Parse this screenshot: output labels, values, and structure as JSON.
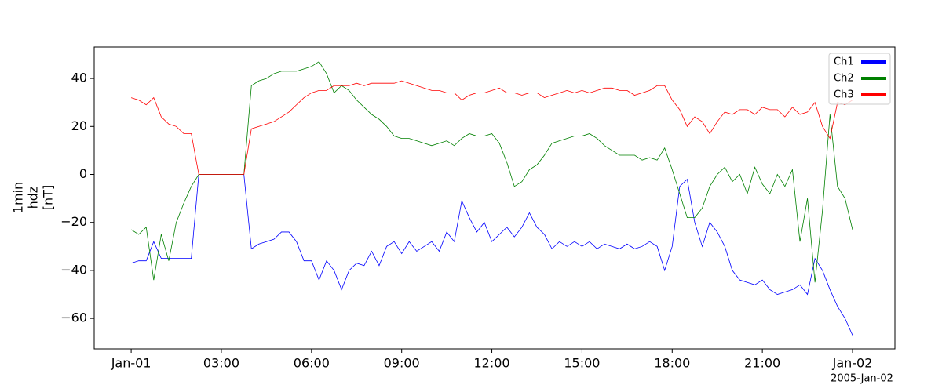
{
  "chart_data": {
    "type": "line",
    "ylabel_lines": [
      "1min",
      "hdz",
      "[nT]"
    ],
    "x_offset_label": "2005-Jan-02",
    "x": [
      0,
      0.25,
      0.5,
      0.75,
      1,
      1.25,
      1.5,
      1.75,
      2,
      2.25,
      2.5,
      2.75,
      3,
      3.25,
      3.5,
      3.75,
      4,
      4.25,
      4.5,
      4.75,
      5,
      5.25,
      5.5,
      5.75,
      6,
      6.25,
      6.5,
      6.75,
      7,
      7.25,
      7.5,
      7.75,
      8,
      8.25,
      8.5,
      8.75,
      9,
      9.25,
      9.5,
      9.75,
      10,
      10.25,
      10.5,
      10.75,
      11,
      11.25,
      11.5,
      11.75,
      12,
      12.25,
      12.5,
      12.75,
      13,
      13.25,
      13.5,
      13.75,
      14,
      14.25,
      14.5,
      14.75,
      15,
      15.25,
      15.5,
      15.75,
      16,
      16.25,
      16.5,
      16.75,
      17,
      17.25,
      17.5,
      17.75,
      18,
      18.25,
      18.5,
      18.75,
      19,
      19.25,
      19.5,
      19.75,
      20,
      20.25,
      20.5,
      20.75,
      21,
      21.25,
      21.5,
      21.75,
      22,
      22.25,
      22.5,
      22.75,
      23,
      23.25,
      23.5,
      23.75,
      24
    ],
    "series": [
      {
        "name": "Ch1",
        "color": "#0000ff",
        "values": [
          -37,
          -36,
          -36,
          -28,
          -35,
          -35,
          -35,
          -35,
          -35,
          0,
          0,
          0,
          0,
          0,
          0,
          0,
          -31,
          -29,
          -28,
          -27,
          -24,
          -24,
          -28,
          -36,
          -36,
          -44,
          -36,
          -40,
          -48,
          -40,
          -37,
          -38,
          -32,
          -38,
          -30,
          -28,
          -33,
          -28,
          -32,
          -30,
          -28,
          -32,
          -24,
          -28,
          -11,
          -18,
          -24,
          -20,
          -28,
          -25,
          -22,
          -26,
          -22,
          -16,
          -22,
          -25,
          -31,
          -28,
          -30,
          -28,
          -30,
          -28,
          -31,
          -29,
          -30,
          -31,
          -29,
          -31,
          -30,
          -28,
          -30,
          -40,
          -30,
          -5,
          -2,
          -20,
          -30,
          -20,
          -24,
          -30,
          -40,
          -44,
          -45,
          -46,
          -44,
          -48,
          -50,
          -49,
          -48,
          -46,
          -50,
          -35,
          -40,
          -48,
          -55,
          -60,
          -67
        ]
      },
      {
        "name": "Ch2",
        "color": "#008000",
        "values": [
          -23,
          -25,
          -22,
          -44,
          -25,
          -36,
          -20,
          -12,
          -5,
          0,
          0,
          0,
          0,
          0,
          0,
          0,
          37,
          39,
          40,
          42,
          43,
          43,
          43,
          44,
          45,
          47,
          42,
          34,
          37,
          35,
          31,
          28,
          25,
          23,
          20,
          16,
          15,
          15,
          14,
          13,
          12,
          13,
          14,
          12,
          15,
          17,
          16,
          16,
          17,
          13,
          5,
          -5,
          -3,
          2,
          4,
          8,
          13,
          14,
          15,
          16,
          16,
          17,
          15,
          12,
          10,
          8,
          8,
          8,
          6,
          7,
          6,
          11,
          2,
          -8,
          -18,
          -18,
          -14,
          -5,
          0,
          3,
          -3,
          0,
          -8,
          3,
          -4,
          -8,
          0,
          -5,
          2,
          -28,
          -10,
          -45,
          -15,
          25,
          -5,
          -10,
          -23
        ]
      },
      {
        "name": "Ch3",
        "color": "#ff0000",
        "values": [
          32,
          31,
          29,
          32,
          24,
          21,
          20,
          17,
          17,
          0,
          0,
          0,
          0,
          0,
          0,
          0,
          19,
          20,
          21,
          22,
          24,
          26,
          29,
          32,
          34,
          35,
          35,
          37,
          37,
          37,
          38,
          37,
          38,
          38,
          38,
          38,
          39,
          38,
          37,
          36,
          35,
          35,
          34,
          34,
          31,
          33,
          34,
          34,
          35,
          36,
          34,
          34,
          33,
          34,
          34,
          32,
          33,
          34,
          35,
          34,
          35,
          34,
          35,
          36,
          36,
          35,
          35,
          33,
          34,
          35,
          37,
          37,
          31,
          27,
          20,
          24,
          22,
          17,
          22,
          26,
          25,
          27,
          27,
          25,
          28,
          27,
          27,
          24,
          28,
          25,
          26,
          30,
          20,
          15,
          30,
          29,
          31
        ]
      }
    ],
    "xlim": [
      -1.23,
      25.41
    ],
    "xticks": [
      {
        "value": 0,
        "label": "Jan-01"
      },
      {
        "value": 3,
        "label": "03:00"
      },
      {
        "value": 6,
        "label": "06:00"
      },
      {
        "value": 9,
        "label": "09:00"
      },
      {
        "value": 12,
        "label": "12:00"
      },
      {
        "value": 15,
        "label": "15:00"
      },
      {
        "value": 18,
        "label": "18:00"
      },
      {
        "value": 21,
        "label": "21:00"
      },
      {
        "value": 24,
        "label": "Jan-02"
      }
    ],
    "ylim": [
      -72.7,
      53.1
    ],
    "yticks": [
      {
        "value": -60,
        "label": "−60"
      },
      {
        "value": -40,
        "label": "−40"
      },
      {
        "value": -20,
        "label": "−20"
      },
      0,
      20,
      40
    ],
    "legend": "upper right",
    "grid": false
  }
}
